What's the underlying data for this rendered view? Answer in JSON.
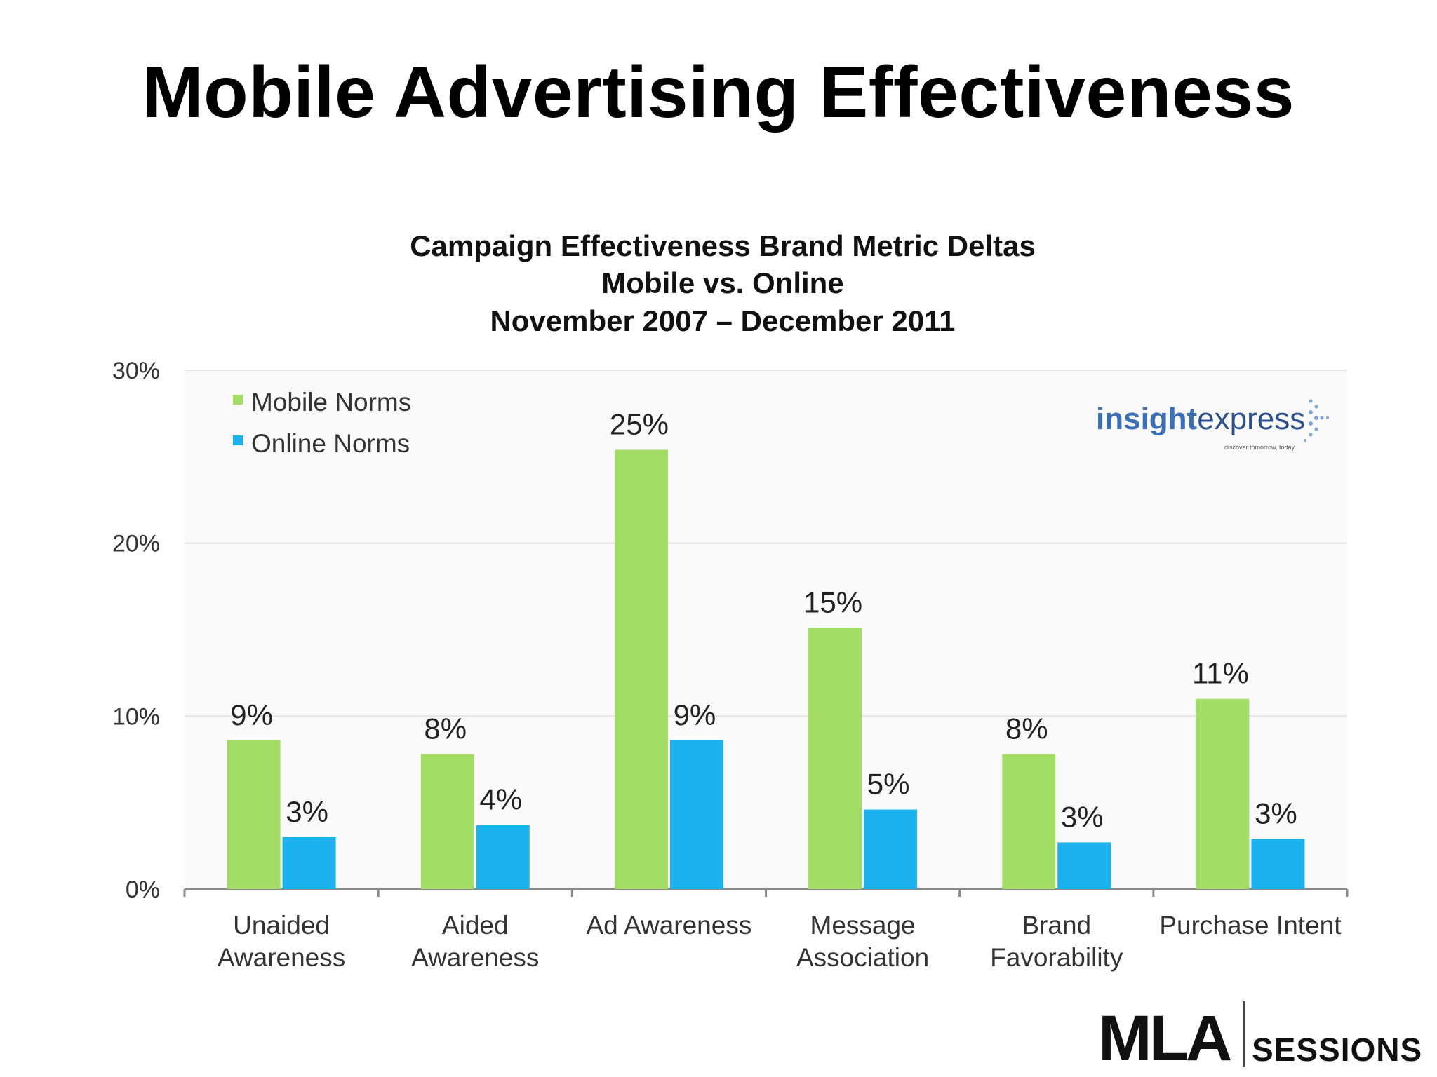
{
  "slide": {
    "title": "Mobile Advertising Effectiveness"
  },
  "chart_data": {
    "type": "bar",
    "title_lines": [
      "Campaign Effectiveness Brand Metric Deltas",
      "Mobile vs. Online",
      "November 2007 – December 2011"
    ],
    "categories": [
      [
        "Unaided",
        "Awareness"
      ],
      [
        "Aided",
        "Awareness"
      ],
      [
        "Ad Awareness"
      ],
      [
        "Message",
        "Association"
      ],
      [
        "Brand",
        "Favorability"
      ],
      [
        "Purchase Intent"
      ]
    ],
    "series": [
      {
        "name": "Mobile Norms",
        "color": "#a3dd65",
        "values": [
          8.6,
          7.8,
          25.4,
          15.1,
          7.8,
          11.0
        ],
        "labels": [
          "9%",
          "8%",
          "25%",
          "15%",
          "8%",
          "11%"
        ]
      },
      {
        "name": "Online Norms",
        "color": "#1bb2ee",
        "values": [
          3.0,
          3.7,
          8.6,
          4.6,
          2.7,
          2.9
        ],
        "labels": [
          "3%",
          "4%",
          "9%",
          "5%",
          "3%",
          "3%"
        ]
      }
    ],
    "ylim": [
      0,
      30
    ],
    "yticks": [
      0,
      10,
      20,
      30
    ],
    "ytick_labels": [
      "0%",
      "10%",
      "20%",
      "30%"
    ],
    "grid": true,
    "legend_position": "top-left"
  },
  "logos": {
    "insight_part1": "insight",
    "insight_part2": "express",
    "insight_tagline": "discover tomorrow, today",
    "mla": "MLA",
    "sessions": "SESSIONS"
  }
}
